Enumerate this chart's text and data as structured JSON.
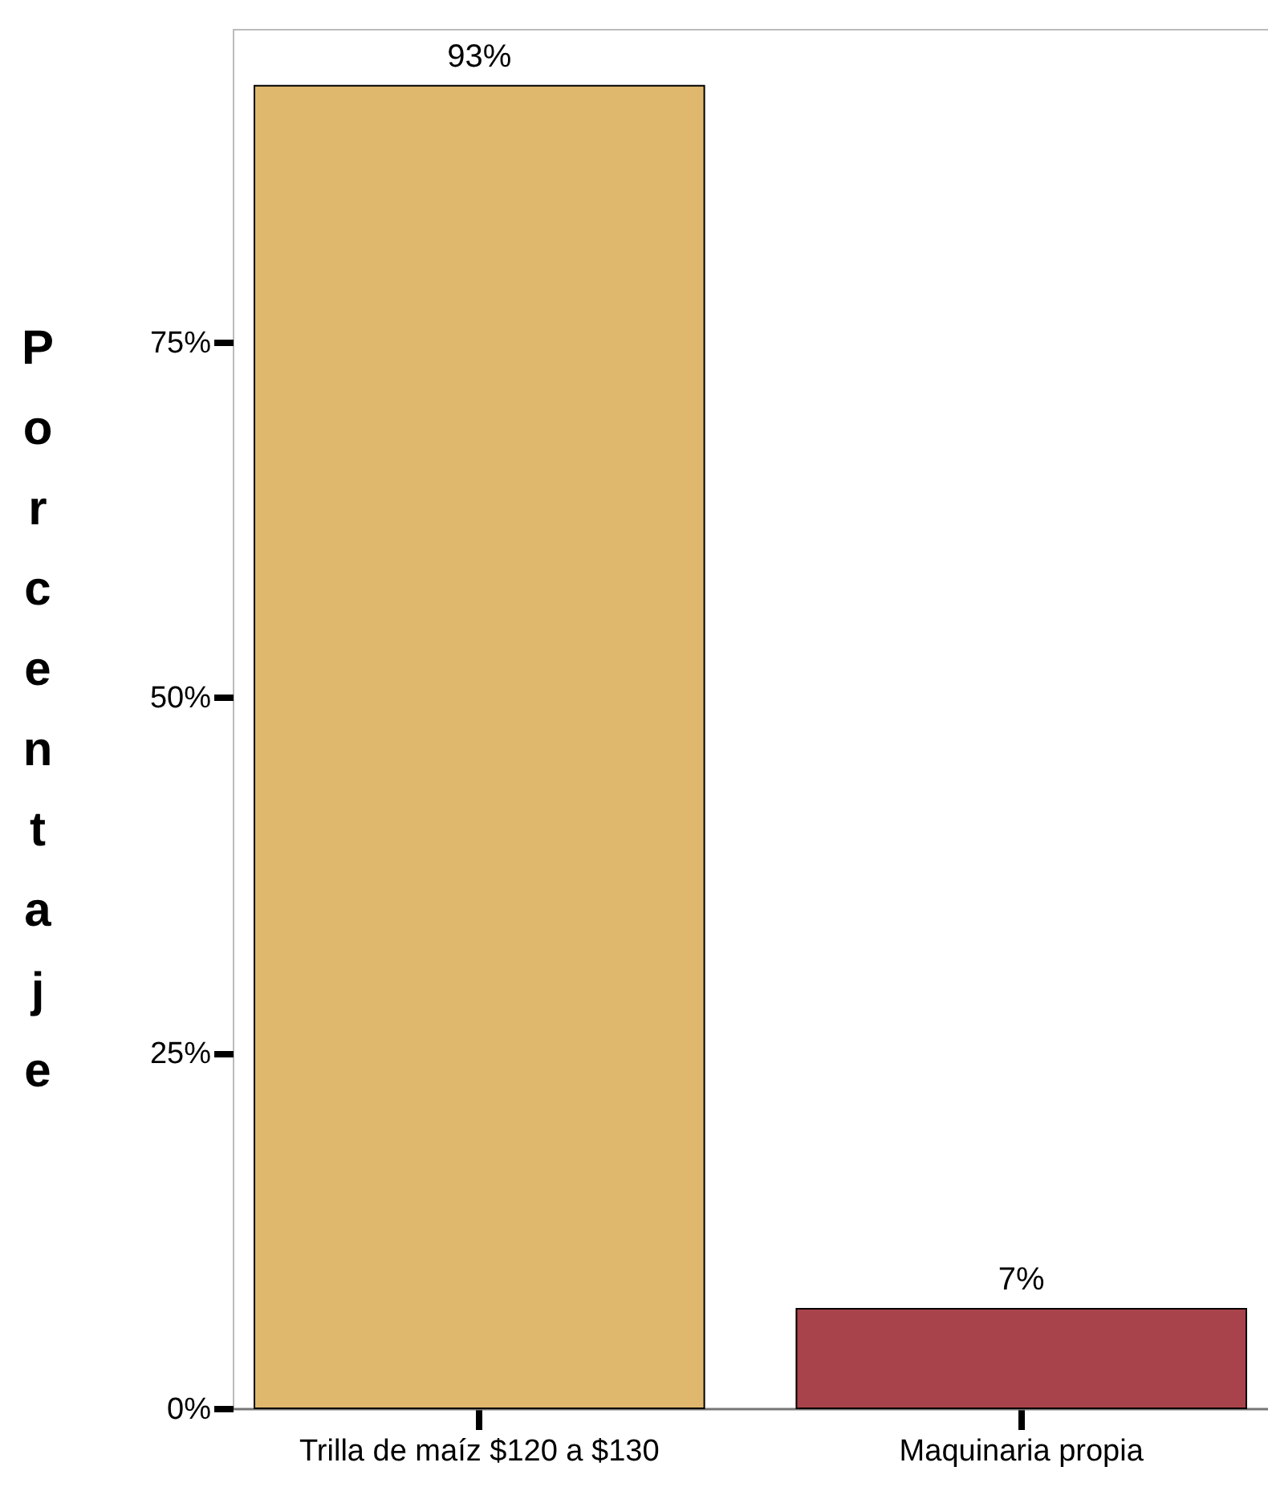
{
  "chart_data": {
    "type": "bar",
    "ylabel": "Porcentaje",
    "categories": [
      "Trilla de maíz $120 a $130",
      "Maquinaria propia"
    ],
    "values": [
      93,
      7
    ],
    "colors": [
      "#dfb86e",
      "#a9434b"
    ],
    "value_labels": [
      "93%",
      "7%"
    ],
    "ylim": [
      0,
      97
    ],
    "yticks": [
      {
        "value": 0,
        "label": "0%"
      },
      {
        "value": 25,
        "label": "25%"
      },
      {
        "value": 50,
        "label": "50%"
      },
      {
        "value": 75,
        "label": "75%"
      }
    ]
  }
}
